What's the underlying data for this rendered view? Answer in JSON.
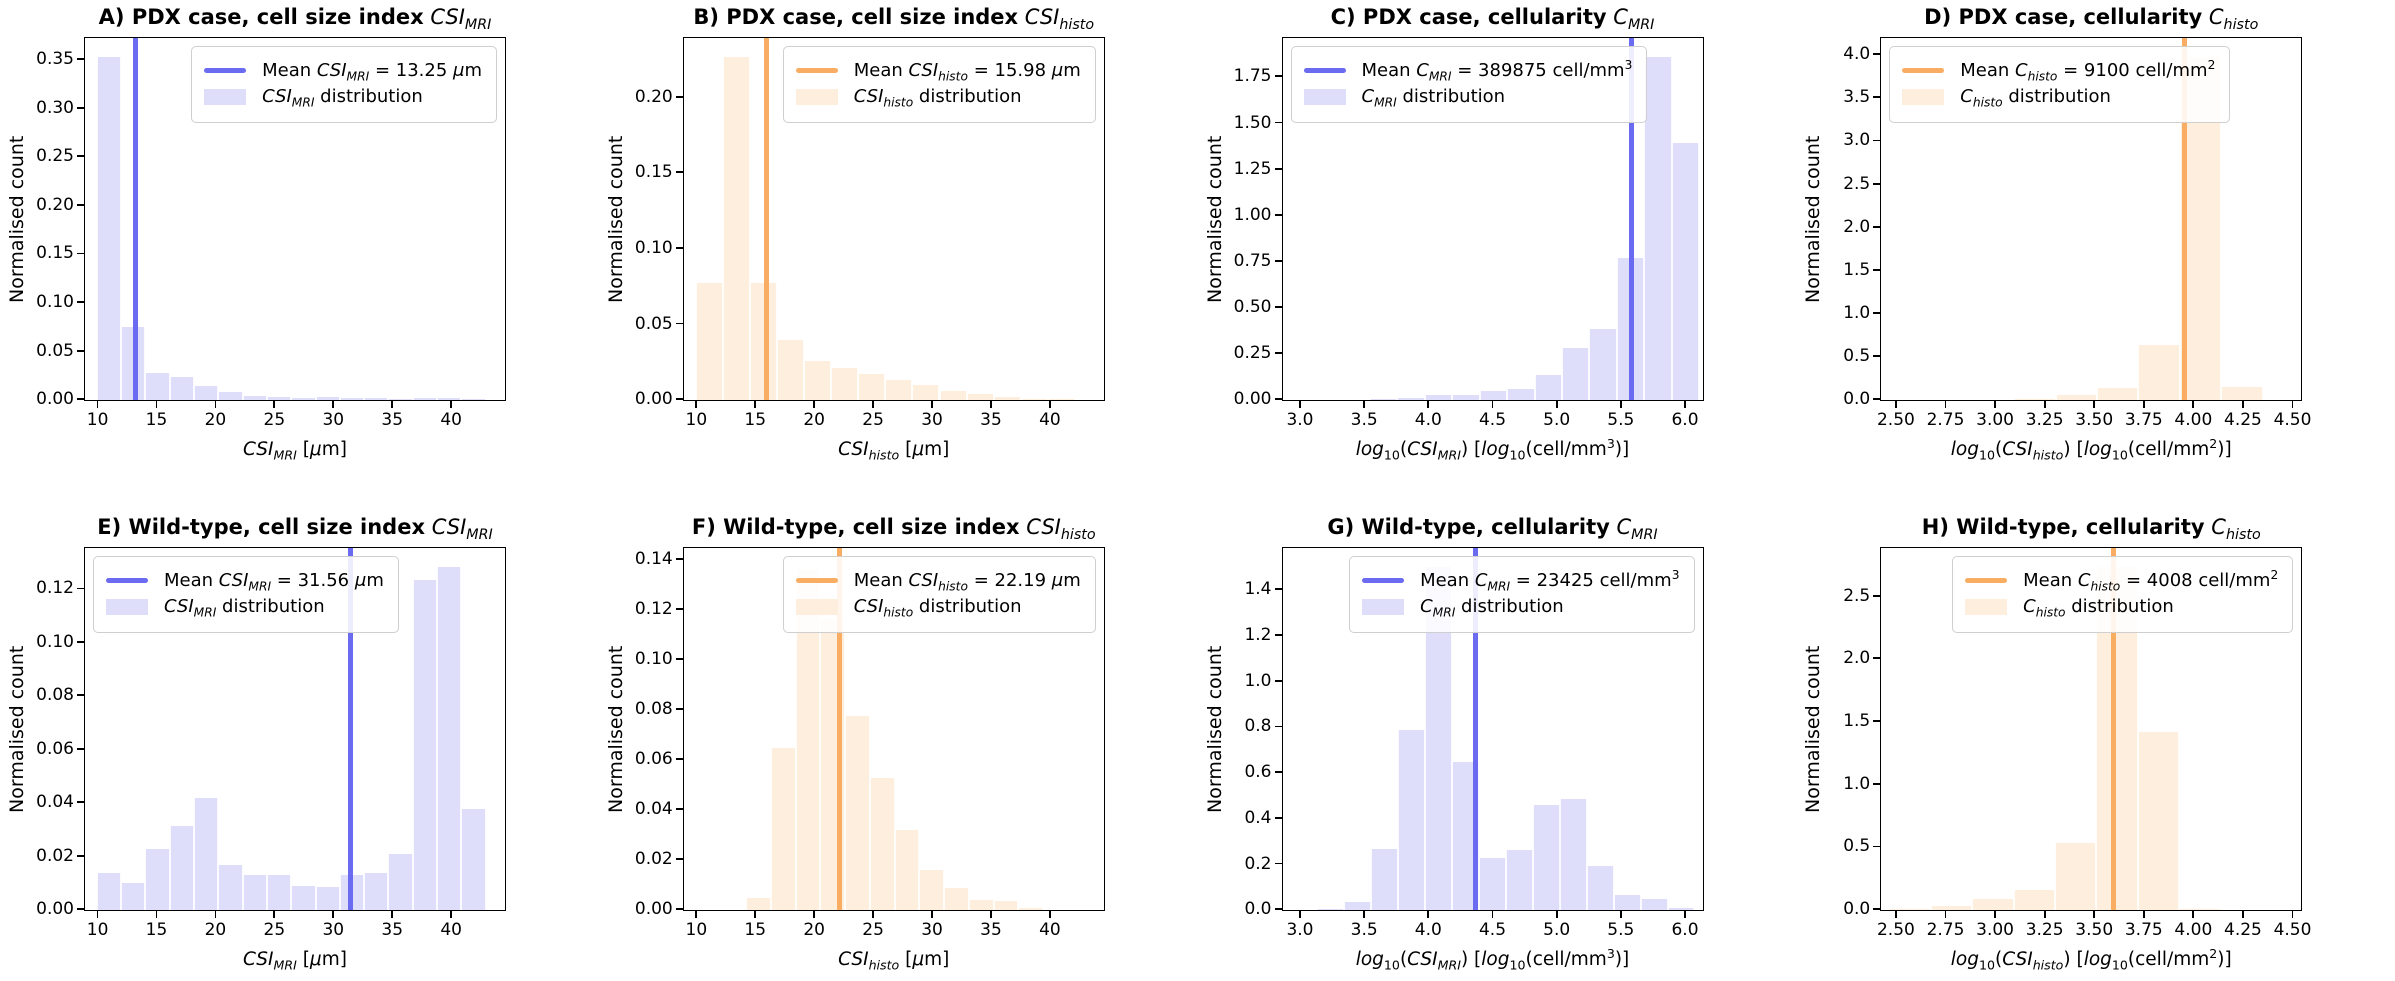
{
  "figure": {
    "background": "#ffffff",
    "ylabel_shared": "Normalised count"
  },
  "colors": {
    "blue_line": "#6b6bf2",
    "blue_fill": "#dfdefa",
    "orange_line": "#f9ad62",
    "orange_fill": "#fdeedd",
    "axis": "#000000",
    "legend_border": "#cfcfcf"
  },
  "chart_data": {
    "type": "bar",
    "note": "2x4 grid of normalised histograms with vertical mean lines",
    "panels": [
      {
        "id": "A",
        "row": 0,
        "col": 0,
        "scheme": "blue",
        "legend_loc": "right",
        "title_text": "A) PDX case, cell size index",
        "title_math": "*CSI*_{MRI}",
        "ylabel": "Normalised count",
        "xlabel": "*CSI*_{MRI}  [*μ*m]",
        "legend_mean_label": "Mean *CSI*_{MRI} = 13.25 *μ*m",
        "legend_dist_label": "*CSI*_{MRI} distribution",
        "mean_x": 13.25,
        "xlim": [
          9.0,
          44.5
        ],
        "ylim": [
          0,
          0.3727
        ],
        "xticks": {
          "values": [
            10,
            15,
            20,
            25,
            30,
            35,
            40
          ],
          "labels": [
            "10",
            "15",
            "20",
            "25",
            "30",
            "35",
            "40"
          ]
        },
        "yticks": {
          "values": [
            0,
            0.05,
            0.1,
            0.15,
            0.2,
            0.25,
            0.3,
            0.35
          ],
          "labels": [
            "0.00",
            "0.05",
            "0.10",
            "0.15",
            "0.20",
            "0.25",
            "0.30",
            "0.35"
          ]
        },
        "bins": {
          "start": 10,
          "width": 2.0625,
          "values": [
            0.355,
            0.075,
            0.028,
            0.024,
            0.014,
            0.008,
            0.004,
            0.003,
            0.002,
            0.003,
            0.002,
            0.002,
            0.001,
            0.002,
            0.002,
            0.001
          ]
        }
      },
      {
        "id": "B",
        "row": 0,
        "col": 1,
        "scheme": "orange",
        "legend_loc": "right",
        "title_text": "B) PDX case, cell size index",
        "title_math": "*CSI*_{histo}",
        "ylabel": "Normalised count",
        "xlabel": "*CSI*_{histo}  [*μ*m]",
        "legend_mean_label": "Mean *CSI*_{histo} = 15.98 *μ*m",
        "legend_dist_label": "*CSI*_{histo} distribution",
        "mean_x": 15.98,
        "xlim": [
          9.0,
          44.5
        ],
        "ylim": [
          0,
          0.2394
        ],
        "xticks": {
          "values": [
            10,
            15,
            20,
            25,
            30,
            35,
            40
          ],
          "labels": [
            "10",
            "15",
            "20",
            "25",
            "30",
            "35",
            "40"
          ]
        },
        "yticks": {
          "values": [
            0,
            0.05,
            0.1,
            0.15,
            0.2
          ],
          "labels": [
            "0.00",
            "0.05",
            "0.10",
            "0.15",
            "0.20"
          ]
        },
        "bins": {
          "start": 10,
          "width": 2.3,
          "values": [
            0.078,
            0.228,
            0.078,
            0.04,
            0.026,
            0.021,
            0.017,
            0.013,
            0.01,
            0.006,
            0.004,
            0.002,
            0.001,
            0.0005
          ]
        }
      },
      {
        "id": "C",
        "row": 0,
        "col": 2,
        "scheme": "blue",
        "legend_loc": "left",
        "title_text": "C) PDX case, cellularity",
        "title_math": "*C*_{MRI}",
        "ylabel": "Normalised count",
        "xlabel": "*log*~{10}(*CSI*_{MRI})  [*log*~{10}(cell/mm^{3})]",
        "legend_mean_label": "Mean *C*_{MRI} = 389875 cell/mm^{3}",
        "legend_dist_label": "*C*_{MRI} distribution",
        "mean_x": 5.591,
        "xlim": [
          2.87,
          6.13
        ],
        "ylim": [
          0,
          1.9635
        ],
        "xticks": {
          "values": [
            3.0,
            3.5,
            4.0,
            4.5,
            5.0,
            5.5,
            6.0
          ],
          "labels": [
            "3.0",
            "3.5",
            "4.0",
            "4.5",
            "5.0",
            "5.5",
            "6.0"
          ]
        },
        "yticks": {
          "values": [
            0,
            0.25,
            0.5,
            0.75,
            1.0,
            1.25,
            1.5,
            1.75
          ],
          "labels": [
            "0.00",
            "0.25",
            "0.50",
            "0.75",
            "1.00",
            "1.25",
            "1.50",
            "1.75"
          ]
        },
        "bins": {
          "start": 3.55,
          "width": 0.214,
          "values": [
            0.005,
            0.012,
            0.025,
            0.025,
            0.05,
            0.06,
            0.135,
            0.285,
            0.385,
            0.775,
            1.87,
            1.4
          ]
        }
      },
      {
        "id": "D",
        "row": 0,
        "col": 3,
        "scheme": "orange",
        "legend_loc": "left",
        "title_text": "D) PDX case, cellularity",
        "title_math": "*C*_{histo}",
        "ylabel": "Normalised count",
        "xlabel": "*log*~{10}(*CSI*_{histo})  [*log*~{10}(cell/mm^{2})]",
        "legend_mean_label": "Mean *C*_{histo} = 9100 cell/mm^{2}",
        "legend_dist_label": "*C*_{histo} distribution",
        "mean_x": 3.959,
        "xlim": [
          2.43,
          4.54
        ],
        "ylim": [
          0,
          4.2
        ],
        "xticks": {
          "values": [
            2.5,
            2.75,
            3.0,
            3.25,
            3.5,
            3.75,
            4.0,
            4.25,
            4.5
          ],
          "labels": [
            "2.50",
            "2.75",
            "3.00",
            "3.25",
            "3.50",
            "3.75",
            "4.00",
            "4.25",
            "4.50"
          ]
        },
        "yticks": {
          "values": [
            0,
            0.5,
            1.0,
            1.5,
            2.0,
            2.5,
            3.0,
            3.5,
            4.0
          ],
          "labels": [
            "0.0",
            "0.5",
            "1.0",
            "1.5",
            "2.0",
            "2.5",
            "3.0",
            "3.5",
            "4.0"
          ]
        },
        "bins": {
          "start": 3.1,
          "width": 0.209,
          "values": [
            0.01,
            0.06,
            0.14,
            0.64,
            4.0,
            0.15
          ]
        }
      },
      {
        "id": "E",
        "row": 1,
        "col": 0,
        "scheme": "blue",
        "legend_loc": "left",
        "title_text": "E) Wild-type, cell size index",
        "title_math": "*CSI*_{MRI}",
        "ylabel": "Normalised count",
        "xlabel": "*CSI*_{MRI}  [*μ*m]",
        "legend_mean_label": "Mean *CSI*_{MRI} = 31.56 *μ*m",
        "legend_dist_label": "*CSI*_{MRI} distribution",
        "mean_x": 31.56,
        "xlim": [
          9.0,
          44.5
        ],
        "ylim": [
          0,
          0.1355
        ],
        "xticks": {
          "values": [
            10,
            15,
            20,
            25,
            30,
            35,
            40
          ],
          "labels": [
            "10",
            "15",
            "20",
            "25",
            "30",
            "35",
            "40"
          ]
        },
        "yticks": {
          "values": [
            0,
            0.02,
            0.04,
            0.06,
            0.08,
            0.1,
            0.12
          ],
          "labels": [
            "0.00",
            "0.02",
            "0.04",
            "0.06",
            "0.08",
            "0.10",
            "0.12"
          ]
        },
        "bins": {
          "start": 10,
          "width": 2.0625,
          "values": [
            0.014,
            0.01,
            0.023,
            0.0315,
            0.042,
            0.017,
            0.013,
            0.013,
            0.009,
            0.0085,
            0.013,
            0.014,
            0.021,
            0.124,
            0.129,
            0.038
          ]
        }
      },
      {
        "id": "F",
        "row": 1,
        "col": 1,
        "scheme": "orange",
        "legend_loc": "right",
        "title_text": "F) Wild-type, cell size index",
        "title_math": "*CSI*_{histo}",
        "ylabel": "Normalised count",
        "xlabel": "*CSI*_{histo}  [*μ*m]",
        "legend_mean_label": "Mean *CSI*_{histo} = 22.19 *μ*m",
        "legend_dist_label": "*CSI*_{histo} distribution",
        "mean_x": 22.19,
        "xlim": [
          9.0,
          44.5
        ],
        "ylim": [
          0,
          0.1449
        ],
        "xticks": {
          "values": [
            10,
            15,
            20,
            25,
            30,
            35,
            40
          ],
          "labels": [
            "10",
            "15",
            "20",
            "25",
            "30",
            "35",
            "40"
          ]
        },
        "yticks": {
          "values": [
            0,
            0.02,
            0.04,
            0.06,
            0.08,
            0.1,
            0.12,
            0.14
          ],
          "labels": [
            "0.00",
            "0.02",
            "0.04",
            "0.06",
            "0.08",
            "0.10",
            "0.12",
            "0.14"
          ]
        },
        "bins": {
          "start": 14.3,
          "width": 2.1,
          "values": [
            0.005,
            0.065,
            0.137,
            0.117,
            0.078,
            0.053,
            0.032,
            0.016,
            0.009,
            0.004,
            0.0035,
            0.001
          ]
        }
      },
      {
        "id": "G",
        "row": 1,
        "col": 2,
        "scheme": "blue",
        "legend_loc": "right",
        "title_text": "G) Wild-type, cellularity",
        "title_math": "*C*_{MRI}",
        "ylabel": "Normalised count",
        "xlabel": "*log*~{10}(*CSI*_{MRI})  [*log*~{10}(cell/mm^{3})]",
        "legend_mean_label": "Mean *C*_{MRI} = 23425 cell/mm^{3}",
        "legend_dist_label": "*C*_{MRI} distribution",
        "mean_x": 4.37,
        "xlim": [
          2.87,
          6.13
        ],
        "ylim": [
          0,
          1.5855
        ],
        "xticks": {
          "values": [
            3.0,
            3.5,
            4.0,
            4.5,
            5.0,
            5.5,
            6.0
          ],
          "labels": [
            "3.0",
            "3.5",
            "4.0",
            "4.5",
            "5.0",
            "5.5",
            "6.0"
          ]
        },
        "yticks": {
          "values": [
            0,
            0.2,
            0.4,
            0.6,
            0.8,
            1.0,
            1.2,
            1.4
          ],
          "labels": [
            "0.0",
            "0.2",
            "0.4",
            "0.6",
            "0.8",
            "1.0",
            "1.2",
            "1.4"
          ]
        },
        "bins": {
          "start": 3.14,
          "width": 0.21,
          "values": [
            0.005,
            0.035,
            0.27,
            0.79,
            1.51,
            0.65,
            0.23,
            0.265,
            0.46,
            0.49,
            0.195,
            0.065,
            0.05,
            0.01
          ]
        }
      },
      {
        "id": "H",
        "row": 1,
        "col": 3,
        "scheme": "orange",
        "legend_loc": "right",
        "title_text": "H) Wild-type, cellularity",
        "title_math": "*C*_{histo}",
        "ylabel": "Normalised count",
        "xlabel": "*log*~{10}(*CSI*_{histo})  [*log*~{10}(cell/mm^{2})]",
        "legend_mean_label": "Mean *C*_{histo} = 4008 cell/mm^{2}",
        "legend_dist_label": "*C*_{histo} distribution",
        "mean_x": 3.603,
        "xlim": [
          2.43,
          4.54
        ],
        "ylim": [
          0,
          2.8875
        ],
        "xticks": {
          "values": [
            2.5,
            2.75,
            3.0,
            3.25,
            3.5,
            3.75,
            4.0,
            4.25,
            4.5
          ],
          "labels": [
            "2.50",
            "2.75",
            "3.00",
            "3.25",
            "3.50",
            "3.75",
            "4.00",
            "4.25",
            "4.50"
          ]
        },
        "yticks": {
          "values": [
            0,
            0.5,
            1.0,
            1.5,
            2.0,
            2.5
          ],
          "labels": [
            "0.0",
            "0.5",
            "1.0",
            "1.5",
            "2.0",
            "2.5"
          ]
        },
        "bins": {
          "start": 2.47,
          "width": 0.209,
          "values": [
            0.005,
            0.03,
            0.09,
            0.16,
            0.54,
            2.75,
            1.43,
            0.005
          ]
        }
      }
    ]
  }
}
